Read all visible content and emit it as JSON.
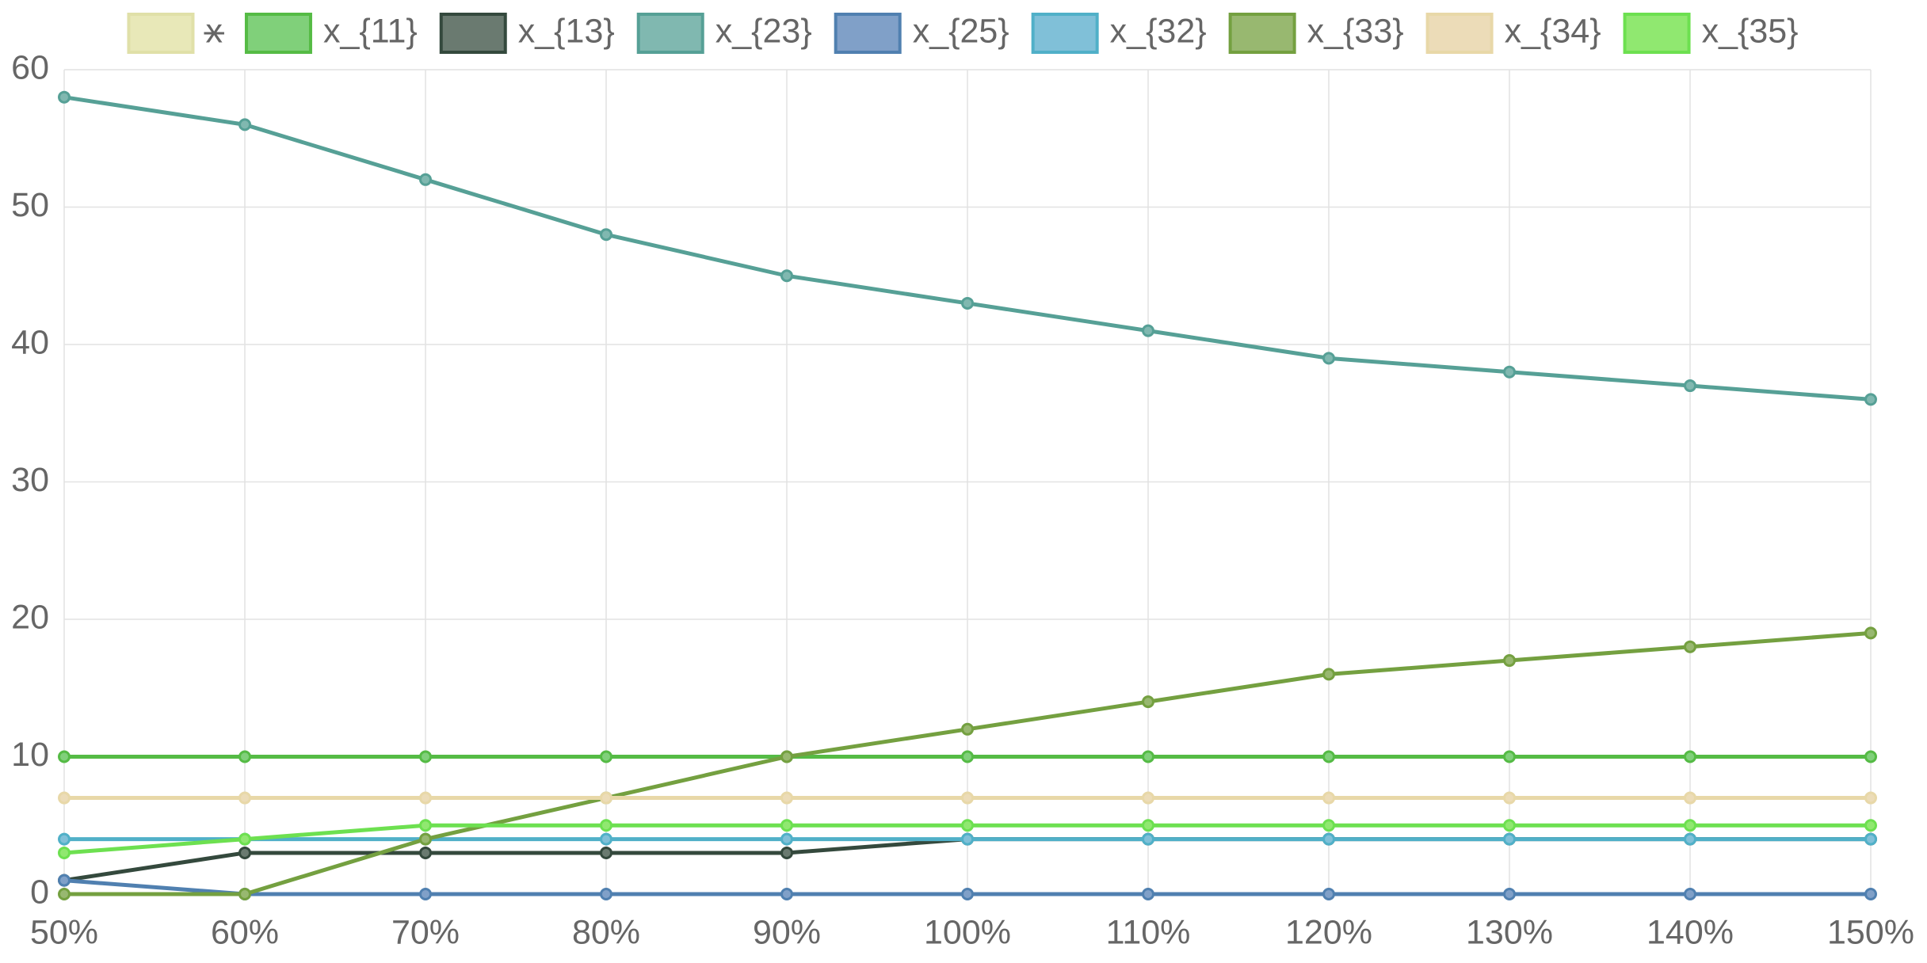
{
  "chart_data": {
    "type": "line",
    "categories": [
      "50%",
      "60%",
      "70%",
      "80%",
      "90%",
      "100%",
      "110%",
      "120%",
      "130%",
      "140%",
      "150%"
    ],
    "ylim": [
      0,
      60
    ],
    "yticks": [
      0,
      10,
      20,
      30,
      40,
      50,
      60
    ],
    "grid": true,
    "legend": "top",
    "series": [
      {
        "name": "x",
        "color": "#e0e0a8",
        "fill": "#e8e8b8",
        "hidden": true,
        "values": [
          null,
          null,
          null,
          null,
          null,
          null,
          null,
          null,
          null,
          null,
          null
        ]
      },
      {
        "name": "x_{11}",
        "color": "#55bb45",
        "fill": "#80d07a",
        "values": [
          10,
          10,
          10,
          10,
          10,
          10,
          10,
          10,
          10,
          10,
          10
        ]
      },
      {
        "name": "x_{13}",
        "color": "#34493d",
        "fill": "#6a7a70",
        "values": [
          1,
          3,
          3,
          3,
          3,
          4,
          4,
          4,
          4,
          4,
          4
        ]
      },
      {
        "name": "x_{23}",
        "color": "#56a096",
        "fill": "#80b8b0",
        "values": [
          58,
          56,
          52,
          48,
          45,
          43,
          41,
          39,
          38,
          37,
          36
        ]
      },
      {
        "name": "x_{25}",
        "color": "#5080b0",
        "fill": "#80a0c8",
        "values": [
          1,
          0,
          0,
          0,
          0,
          0,
          0,
          0,
          0,
          0,
          0
        ]
      },
      {
        "name": "x_{32}",
        "color": "#50b0c8",
        "fill": "#80c0d8",
        "values": [
          4,
          4,
          4,
          4,
          4,
          4,
          4,
          4,
          4,
          4,
          4
        ]
      },
      {
        "name": "x_{33}",
        "color": "#74a040",
        "fill": "#98b870",
        "values": [
          0,
          0,
          4,
          7,
          10,
          12,
          14,
          16,
          17,
          18,
          19
        ]
      },
      {
        "name": "x_{34}",
        "color": "#e8d8a8",
        "fill": "#ecdcb8",
        "values": [
          7,
          7,
          7,
          7,
          7,
          7,
          7,
          7,
          7,
          7,
          7
        ]
      },
      {
        "name": "x_{35}",
        "color": "#6de050",
        "fill": "#90e870",
        "values": [
          3,
          4,
          5,
          5,
          5,
          5,
          5,
          5,
          5,
          5,
          5
        ]
      }
    ]
  }
}
